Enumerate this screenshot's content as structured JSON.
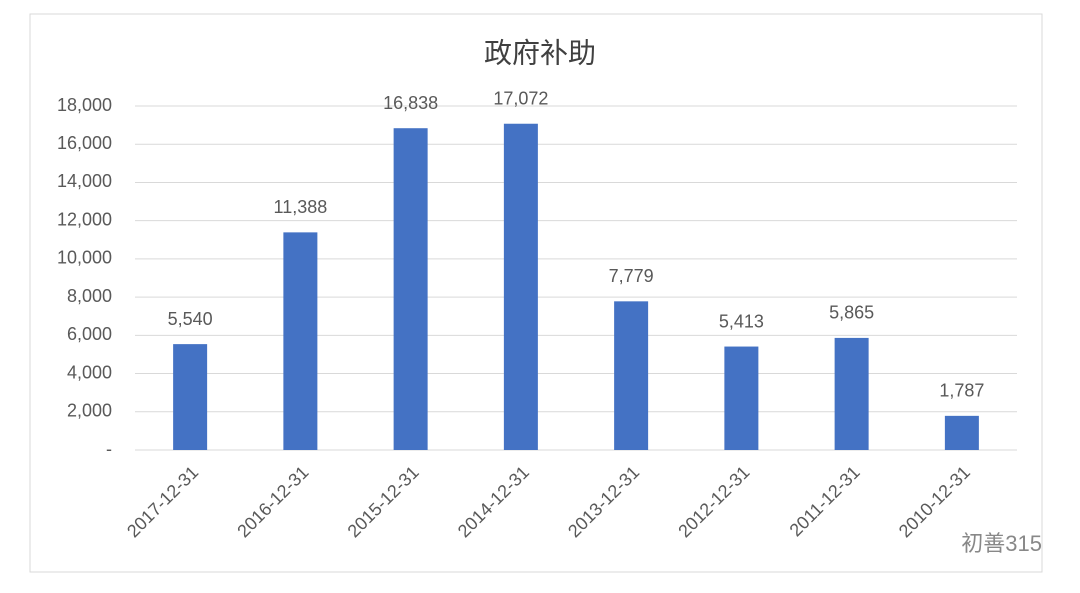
{
  "chart_data": {
    "type": "bar",
    "title": "政府补助",
    "categories": [
      "2017-12-31",
      "2016-12-31",
      "2015-12-31",
      "2014-12-31",
      "2013-12-31",
      "2012-12-31",
      "2011-12-31",
      "2010-12-31"
    ],
    "values": [
      5540,
      11388,
      16838,
      17072,
      7779,
      5413,
      5865,
      1787
    ],
    "value_labels": [
      "5,540",
      "11,388",
      "16,838",
      "17,072",
      "7,779",
      "5,413",
      "5,865",
      "1,787"
    ],
    "color": "#4472c4",
    "ylim": [
      0,
      18000
    ],
    "yticks": [
      {
        "value": 0,
        "label": "-"
      },
      {
        "value": 2000,
        "label": "2,000"
      },
      {
        "value": 4000,
        "label": "4,000"
      },
      {
        "value": 6000,
        "label": "6,000"
      },
      {
        "value": 8000,
        "label": "8,000"
      },
      {
        "value": 10000,
        "label": "10,000"
      },
      {
        "value": 12000,
        "label": "12,000"
      },
      {
        "value": 14000,
        "label": "14,000"
      },
      {
        "value": 16000,
        "label": "16,000"
      },
      {
        "value": 18000,
        "label": "18,000"
      }
    ],
    "grid": true,
    "watermark": "初善315"
  }
}
